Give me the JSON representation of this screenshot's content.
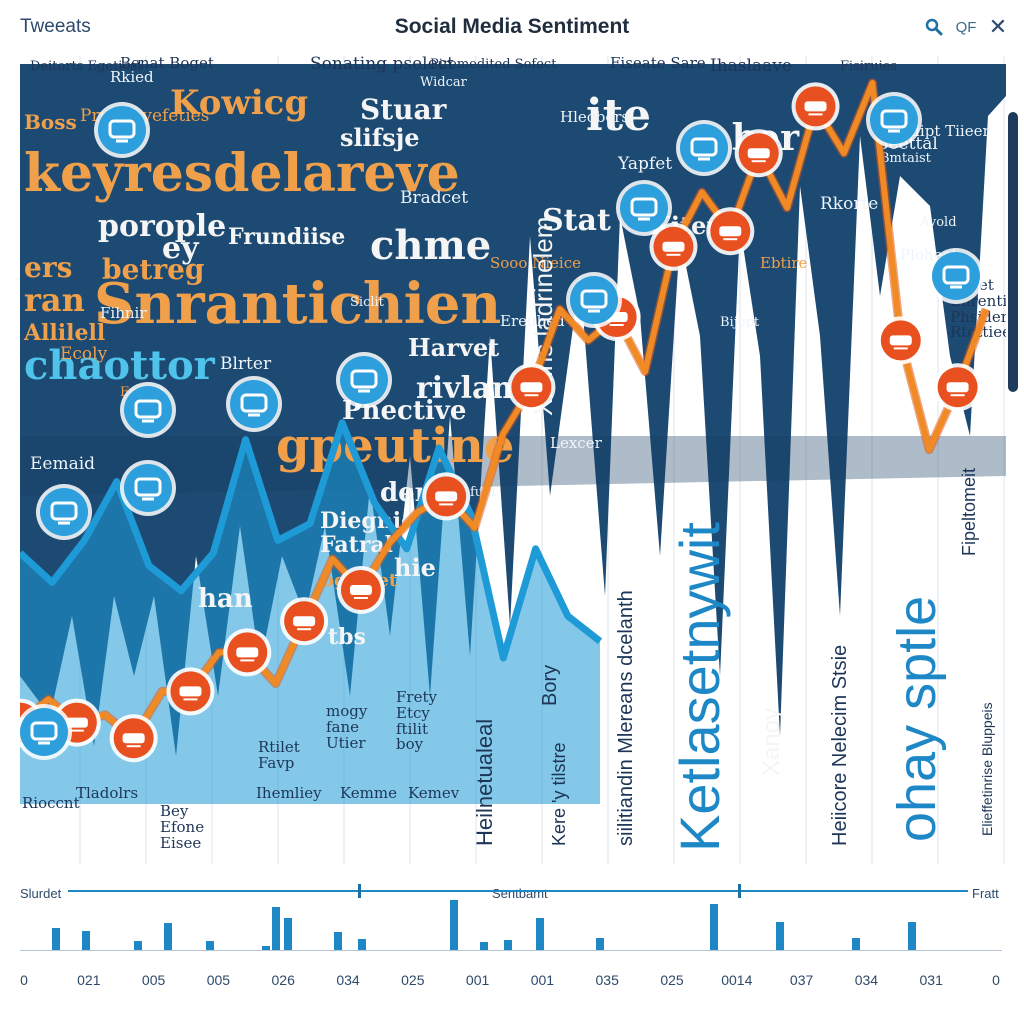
{
  "header": {
    "tab_label": "Tweeats",
    "title": "Social Media Sentiment",
    "search_icon": "search-icon",
    "filter_label": "QF",
    "close_glyph": "✕"
  },
  "colors": {
    "navy": "#1c4a73",
    "navy_dark": "#163d61",
    "teal": "#1e9ad6",
    "orange": "#f08a24",
    "marker_red": "#e9501f",
    "marker_blue": "#2c9fdc"
  },
  "word_cloud": {
    "big_words": [
      "keyresdelareve",
      "Snrantichien",
      "chaottor",
      "gpeutine",
      "Kowicg",
      "porople",
      "betreg",
      "Frundiise",
      "chme",
      "ite",
      "ber",
      "Harvet",
      "rivlan",
      "Phective",
      "der",
      "Diegnig",
      "Fatral",
      "hie",
      "ogeblet",
      "tbs",
      "han",
      "Stuar",
      "slifsje",
      "ey",
      "ers",
      "ran",
      "Allilell",
      "Stat",
      "Kiten",
      "Boss"
    ],
    "small_words": [
      "Deitorts Egetical",
      "Benat Boget",
      "Sonating pselect",
      "Piremedited Sofect",
      "Fiseate Sare",
      "Ihaslaave",
      "Fisiruies",
      "Rkied",
      "Prugebyefeties",
      "Widcar",
      "Hleobers",
      "Yapfet",
      "Heeftt",
      "Suipt Tiieer",
      "Beettal",
      "Bmtaist",
      "Sooo Nieice",
      "Bradcet",
      "Siclit",
      "Fihnir",
      "Ecoly",
      "fulit",
      "Lexcer",
      "Blrter",
      "Fmerit",
      "Ereubed",
      "Eemaid",
      "Bijopt",
      "Ebtire",
      "Rkorte",
      "Avold",
      "Ploheet"
    ],
    "vertical_words": [
      "Ketlasetnywit",
      "ohay sptle",
      "Heilnetualeal",
      "siilitiandin Mlereans dcelanth",
      "Xanoy",
      "Heiicore Nelecim Stsie",
      "Bory",
      "Kere 'y tilstre",
      "Xmlhs ladrinelem",
      "Fipeltomeit",
      "Elieffetinrise Bluppeis"
    ]
  },
  "tile_labels": [
    "Rioccnt",
    "Tladolrs",
    "Bey\nEfone\nEisee",
    "Ihemliey",
    "Kemme",
    "Kemev",
    "Rtilet\nFavp",
    "mogy\nfane\nUtier",
    "Frety\nEtcy\nftilit\nboy",
    "Fileet\nEnrentied\nPhsider\nRtottiee"
  ],
  "chart_data": {
    "type": "line",
    "title": "Social Media Sentiment",
    "xlabel": "",
    "ylabel": "",
    "grid": true,
    "series": [
      {
        "values": [
          0.55,
          0.48,
          0.58,
          0.72,
          0.52,
          0.46,
          0.55,
          0.82,
          0.58,
          0.62,
          0.86,
          0.67,
          0.56,
          0.8,
          0.64,
          0.3,
          0.56,
          0.4,
          0.34
        ]
      },
      {
        "values": [
          0.13,
          0.16,
          0.13,
          0.14,
          0.11,
          0.17,
          0.17,
          0.22,
          0.22,
          0.18,
          0.26,
          0.34,
          0.3,
          0.36,
          0.4,
          0.42,
          0.38,
          0.5,
          0.56,
          0.66,
          0.62,
          0.65,
          0.58,
          0.74,
          0.81,
          0.76,
          0.86,
          0.79,
          0.92,
          0.86,
          0.95,
          0.62,
          0.48,
          0.56,
          0.66
        ]
      }
    ],
    "markers_orange": [
      0,
      1,
      2,
      3,
      4,
      5,
      6,
      7,
      8,
      9,
      10,
      11,
      12,
      13,
      14,
      15
    ],
    "markers_blue": [
      0,
      1,
      2,
      3,
      4,
      5,
      6,
      7,
      8,
      9,
      10,
      11
    ]
  },
  "timeline": {
    "left_label": "Slurdet",
    "center_label": "Sentbamt",
    "right_label": "Fratt",
    "ticks": [
      "0",
      "021",
      "005",
      "005",
      "026",
      "034",
      "025",
      "001",
      "001",
      "035",
      "025",
      "0014",
      "037",
      "034",
      "031",
      "0"
    ],
    "bar_values": [
      0.4,
      0.36,
      0.16,
      0.5,
      0.16,
      0.06,
      0.8,
      0.34,
      0.2,
      0.92,
      0.18,
      0.6,
      0.22,
      0.86,
      0.52,
      0.22,
      0.52,
      0.6,
      0.14
    ]
  }
}
